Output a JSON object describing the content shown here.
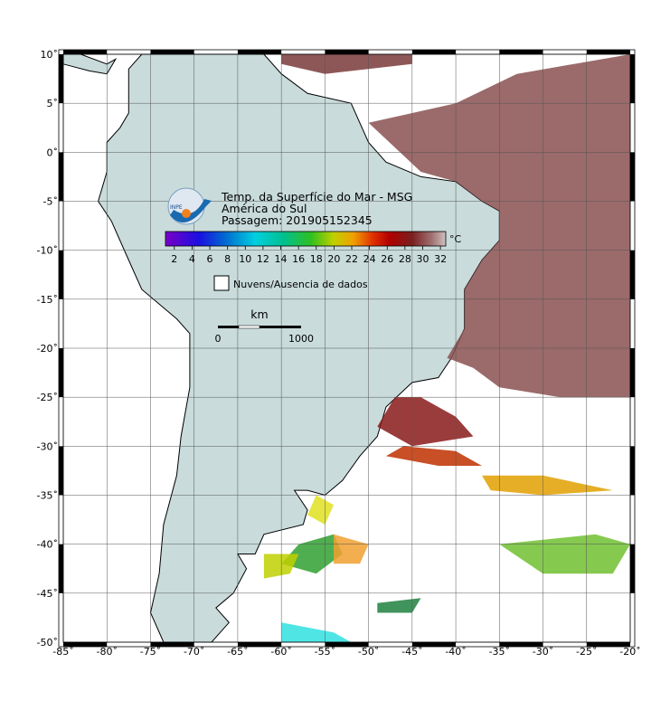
{
  "map": {
    "title_lines": [
      "Temp. da Superfície do Mar - MSG",
      "América do Sul",
      "Passagem: 201905152345"
    ],
    "xlim": [
      -85,
      -20
    ],
    "ylim": [
      -50,
      10
    ],
    "xticks": [
      {
        "value": -85,
        "label": "-85˚"
      },
      {
        "value": -80,
        "label": "-80˚"
      },
      {
        "value": -75,
        "label": "-75˚"
      },
      {
        "value": -70,
        "label": "-70˚"
      },
      {
        "value": -65,
        "label": "-65˚"
      },
      {
        "value": -60,
        "label": "-60˚"
      },
      {
        "value": -55,
        "label": "-55˚"
      },
      {
        "value": -50,
        "label": "-50˚"
      },
      {
        "value": -45,
        "label": "-45˚"
      },
      {
        "value": -40,
        "label": "-40˚"
      },
      {
        "value": -35,
        "label": "-35˚"
      },
      {
        "value": -30,
        "label": "-30˚"
      },
      {
        "value": -25,
        "label": "-25˚"
      },
      {
        "value": -20,
        "label": "-20˚"
      }
    ],
    "yticks": [
      {
        "value": 10,
        "label": "10˚"
      },
      {
        "value": 5,
        "label": "5˚"
      },
      {
        "value": 0,
        "label": "0˚"
      },
      {
        "value": -5,
        "label": "-5˚"
      },
      {
        "value": -10,
        "label": "-10˚"
      },
      {
        "value": -15,
        "label": "-15˚"
      },
      {
        "value": -20,
        "label": "-20˚"
      },
      {
        "value": -25,
        "label": "-25˚"
      },
      {
        "value": -30,
        "label": "-30˚"
      },
      {
        "value": -35,
        "label": "-35˚"
      },
      {
        "value": -40,
        "label": "-40˚"
      },
      {
        "value": -45,
        "label": "-45˚"
      },
      {
        "value": -50,
        "label": "-50˚"
      }
    ],
    "grid": true,
    "colorbar": {
      "unit": "°C",
      "lim": [
        1,
        32.6
      ],
      "ticks": [
        2,
        4,
        6,
        8,
        10,
        12,
        14,
        16,
        18,
        20,
        22,
        24,
        26,
        28,
        30,
        32
      ]
    },
    "legend": "Nuvens/Ausencia de dados",
    "scale_bar": {
      "unit": "km",
      "labels": [
        "0",
        "1000"
      ]
    }
  }
}
